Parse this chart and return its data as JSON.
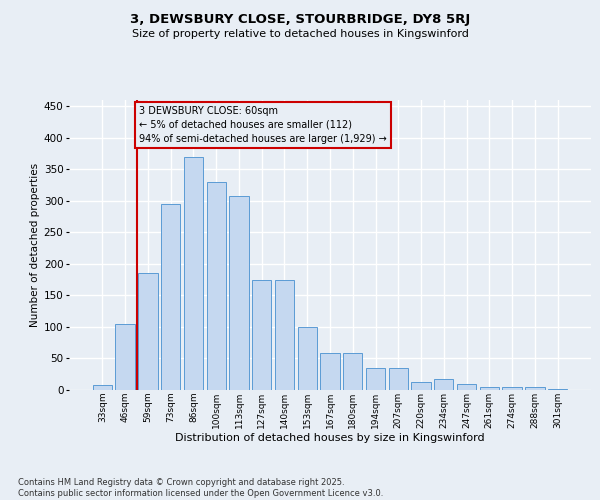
{
  "title": "3, DEWSBURY CLOSE, STOURBRIDGE, DY8 5RJ",
  "subtitle": "Size of property relative to detached houses in Kingswinford",
  "xlabel": "Distribution of detached houses by size in Kingswinford",
  "ylabel": "Number of detached properties",
  "footer_line1": "Contains HM Land Registry data © Crown copyright and database right 2025.",
  "footer_line2": "Contains public sector information licensed under the Open Government Licence v3.0.",
  "categories": [
    "33sqm",
    "46sqm",
    "59sqm",
    "73sqm",
    "86sqm",
    "100sqm",
    "113sqm",
    "127sqm",
    "140sqm",
    "153sqm",
    "167sqm",
    "180sqm",
    "194sqm",
    "207sqm",
    "220sqm",
    "234sqm",
    "247sqm",
    "261sqm",
    "274sqm",
    "288sqm",
    "301sqm"
  ],
  "values": [
    8,
    105,
    185,
    295,
    370,
    330,
    308,
    175,
    175,
    100,
    58,
    58,
    35,
    35,
    12,
    17,
    10,
    5,
    5,
    4,
    2
  ],
  "bar_color": "#c5d8f0",
  "bar_edge_color": "#5b9bd5",
  "bg_color": "#e8eef5",
  "grid_color": "#ffffff",
  "vline_color": "#cc0000",
  "vline_position": 1.5,
  "annotation_text": "3 DEWSBURY CLOSE: 60sqm\n← 5% of detached houses are smaller (112)\n94% of semi-detached houses are larger (1,929) →",
  "annotation_box_edgecolor": "#cc0000",
  "ylim": [
    0,
    460
  ],
  "yticks": [
    0,
    50,
    100,
    150,
    200,
    250,
    300,
    350,
    400,
    450
  ]
}
